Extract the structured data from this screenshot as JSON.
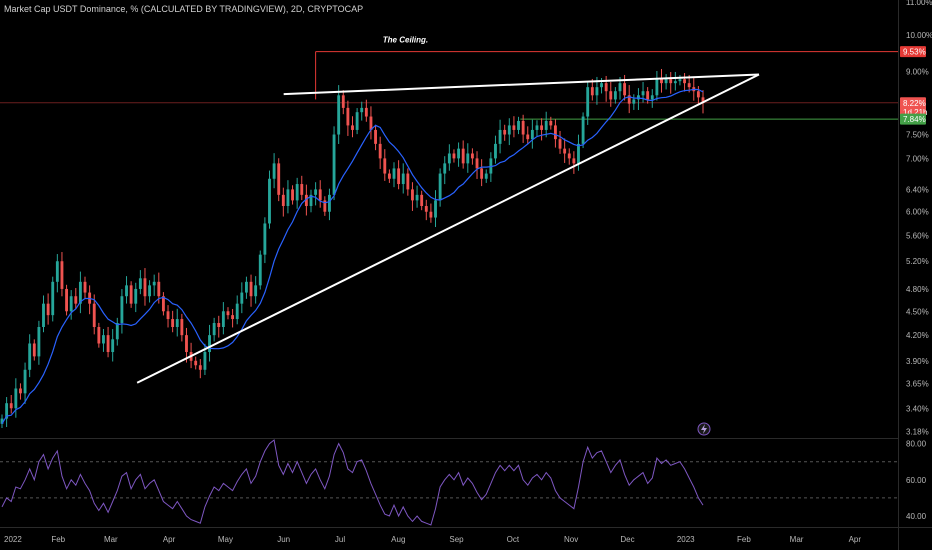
{
  "header": {
    "title": "Market Cap USDT Dominance, % (CALCULATED BY TRADINGVIEW), 2D, CRYPTOCAP"
  },
  "colors": {
    "up": "#26a69a",
    "down": "#ef5350",
    "ma": "#2962ff",
    "ceiling": "#e53935",
    "support": "#43a047",
    "trend": "#ffffff",
    "rsi": "#7e57c2"
  },
  "chart_data": {
    "type": "candlestick",
    "title": "Market Cap USDT Dominance, % (CALCULATED BY TRADINGVIEW), 2D, CRYPTOCAP",
    "y_scale": "log",
    "ylim": [
      3.12,
      11.0
    ],
    "y_ticks": [
      "11.00%",
      "10.00%",
      "9.00%",
      "8.22%",
      "7.84%",
      "7.50%",
      "7.00%",
      "6.40%",
      "6.00%",
      "5.60%",
      "5.20%",
      "4.80%",
      "4.50%",
      "4.20%",
      "3.90%",
      "3.65%",
      "3.40%",
      "3.18%"
    ],
    "y_tick_values": [
      11.0,
      10.0,
      9.0,
      8.22,
      7.84,
      7.5,
      7.0,
      6.4,
      6.0,
      5.6,
      5.2,
      4.8,
      4.5,
      4.2,
      3.9,
      3.65,
      3.4,
      3.18
    ],
    "x_ticks": [
      "2022",
      "Feb",
      "Mar",
      "Apr",
      "May",
      "Jun",
      "Jul",
      "Aug",
      "Sep",
      "Oct",
      "Nov",
      "Dec",
      "2023",
      "Feb",
      "Mar",
      "Apr"
    ],
    "x_tick_dates": [
      "2022-01-01",
      "2022-02-01",
      "2022-03-01",
      "2022-04-01",
      "2022-05-01",
      "2022-06-01",
      "2022-07-01",
      "2022-08-01",
      "2022-09-01",
      "2022-10-01",
      "2022-11-01",
      "2022-12-01",
      "2023-01-01",
      "2023-02-01",
      "2023-03-01",
      "2023-04-01"
    ],
    "xlim": [
      "2022-01-01",
      "2023-04-24"
    ],
    "closes": [
      3.3,
      3.45,
      3.4,
      3.6,
      3.55,
      3.8,
      4.1,
      3.95,
      4.3,
      4.6,
      4.45,
      4.9,
      5.2,
      4.8,
      4.5,
      4.7,
      4.6,
      4.9,
      4.75,
      4.6,
      4.3,
      4.1,
      4.2,
      4.0,
      4.15,
      4.35,
      4.7,
      4.85,
      4.6,
      4.8,
      4.95,
      4.7,
      4.85,
      4.9,
      4.7,
      4.5,
      4.4,
      4.3,
      4.4,
      4.2,
      4.0,
      3.9,
      3.85,
      3.8,
      4.0,
      4.2,
      4.35,
      4.3,
      4.5,
      4.45,
      4.4,
      4.6,
      4.75,
      4.9,
      4.7,
      4.85,
      5.3,
      5.8,
      6.6,
      6.9,
      6.3,
      6.1,
      6.4,
      6.2,
      6.5,
      6.3,
      6.1,
      6.3,
      6.4,
      6.2,
      6.0,
      6.3,
      7.5,
      8.4,
      8.1,
      7.7,
      7.6,
      8.0,
      8.1,
      7.9,
      7.6,
      7.3,
      7.0,
      6.7,
      6.6,
      6.8,
      6.5,
      6.7,
      6.4,
      6.2,
      6.3,
      6.1,
      6.0,
      5.9,
      6.2,
      6.7,
      6.9,
      7.1,
      7.0,
      7.2,
      6.9,
      7.1,
      7.0,
      6.8,
      6.6,
      6.7,
      7.0,
      7.3,
      7.6,
      7.5,
      7.7,
      7.6,
      7.8,
      7.5,
      7.4,
      7.6,
      7.7,
      7.6,
      7.8,
      7.7,
      7.4,
      7.2,
      7.1,
      7.0,
      6.9,
      7.3,
      7.9,
      8.6,
      8.4,
      8.6,
      8.7,
      8.5,
      8.3,
      8.5,
      8.7,
      8.4,
      8.2,
      8.3,
      8.4,
      8.5,
      8.3,
      8.4,
      8.8,
      8.7,
      8.8,
      8.7,
      8.75,
      8.8,
      8.7,
      8.6,
      8.5,
      8.35,
      8.22
    ],
    "series": [
      {
        "values_ref": "closes"
      }
    ],
    "price_lines": [
      {
        "value": 9.53,
        "label": "9.53%"
      },
      {
        "value": 8.22,
        "label": "8.22%"
      },
      {
        "value": 7.84,
        "label": "7.84%"
      }
    ],
    "countdown_label": "1d 21h",
    "annotations": [
      {
        "text": "The Ceiling.",
        "x_date": "2022-06-25",
        "y": 9.78
      }
    ],
    "trendlines": [
      {
        "from": [
          "2022-03-15",
          3.66
        ],
        "to": [
          "2023-02-09",
          8.92
        ]
      },
      {
        "from": [
          "2022-06-01",
          8.43
        ],
        "to": [
          "2023-02-09",
          8.92
        ]
      }
    ],
    "ceiling_start_date": "2022-06-18",
    "rsi": {
      "y_ticks": [
        "80.00",
        "60.00",
        "40.00"
      ],
      "y_tick_values": [
        80,
        60,
        40
      ],
      "ylim": [
        35,
        82
      ],
      "bands": [
        70,
        50
      ],
      "values": [
        45,
        50,
        48,
        56,
        55,
        60,
        66,
        60,
        70,
        74,
        66,
        72,
        76,
        62,
        55,
        60,
        57,
        63,
        58,
        54,
        47,
        43,
        47,
        42,
        48,
        54,
        62,
        64,
        55,
        60,
        63,
        55,
        58,
        60,
        54,
        48,
        46,
        44,
        48,
        44,
        40,
        38,
        37,
        36,
        45,
        51,
        56,
        54,
        58,
        56,
        54,
        59,
        63,
        66,
        58,
        62,
        70,
        76,
        80,
        82,
        68,
        63,
        69,
        64,
        70,
        64,
        58,
        63,
        66,
        60,
        55,
        62,
        74,
        80,
        75,
        66,
        64,
        70,
        71,
        65,
        58,
        52,
        46,
        41,
        40,
        46,
        40,
        45,
        40,
        37,
        40,
        37,
        36,
        35,
        44,
        56,
        60,
        63,
        60,
        64,
        57,
        61,
        58,
        53,
        49,
        52,
        58,
        64,
        68,
        65,
        68,
        65,
        68,
        60,
        57,
        61,
        63,
        60,
        64,
        61,
        54,
        50,
        48,
        46,
        44,
        56,
        70,
        78,
        72,
        75,
        76,
        70,
        64,
        68,
        71,
        63,
        57,
        60,
        62,
        64,
        58,
        61,
        72,
        69,
        71,
        68,
        69,
        70,
        66,
        61,
        56,
        50,
        46
      ]
    }
  }
}
